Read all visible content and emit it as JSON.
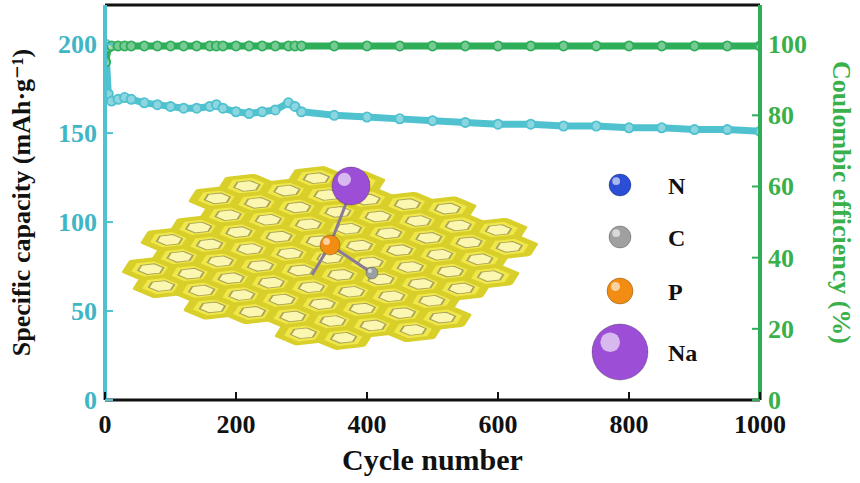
{
  "chart_data": {
    "type": "line",
    "x_label": "Cycle number",
    "y_label": "Specific capacity (mAh·g⁻¹)",
    "y2_label": "Coulombic efficiency (%)",
    "x": [
      1,
      5,
      10,
      20,
      30,
      40,
      60,
      80,
      100,
      120,
      140,
      160,
      170,
      180,
      200,
      220,
      240,
      260,
      280,
      290,
      300,
      350,
      400,
      450,
      500,
      550,
      600,
      650,
      700,
      750,
      800,
      850,
      900,
      950,
      1000
    ],
    "series": [
      {
        "color": "#4fc1cf",
        "marker": "circle",
        "line_style": "solid",
        "values": [
          200,
          172,
          168,
          169,
          170,
          169,
          167,
          166,
          165,
          164,
          164,
          165,
          166,
          164,
          162,
          161,
          162,
          163,
          167,
          165,
          162,
          160,
          159,
          158,
          157,
          156,
          155,
          155,
          154,
          154,
          153,
          153,
          152,
          152,
          151
        ]
      },
      {
        "color": "#2fae5a",
        "marker": "circle",
        "line_style": "solid",
        "axis": "y2",
        "values": [
          95,
          99,
          99.5,
          99.5,
          99.5,
          99.5,
          99.5,
          99.5,
          99.5,
          99.5,
          99.5,
          99.5,
          99.5,
          99.5,
          99.5,
          99.5,
          99.5,
          99.5,
          99.5,
          99.5,
          99.5,
          99.5,
          99.5,
          99.5,
          99.5,
          99.5,
          99.5,
          99.5,
          99.5,
          99.5,
          99.5,
          99.5,
          99.5,
          99.5,
          99.5
        ]
      }
    ],
    "xlim": [
      0,
      1000
    ],
    "xticks": [
      0,
      200,
      400,
      600,
      800,
      1000
    ],
    "ylim": [
      0,
      222
    ],
    "yticks": [
      0,
      50,
      100,
      150,
      200
    ],
    "y2lim": [
      0,
      111
    ],
    "y2ticks": [
      0,
      20,
      40,
      60,
      80,
      100
    ],
    "annotations": [
      "N",
      "C",
      "P",
      "Na"
    ]
  }
}
